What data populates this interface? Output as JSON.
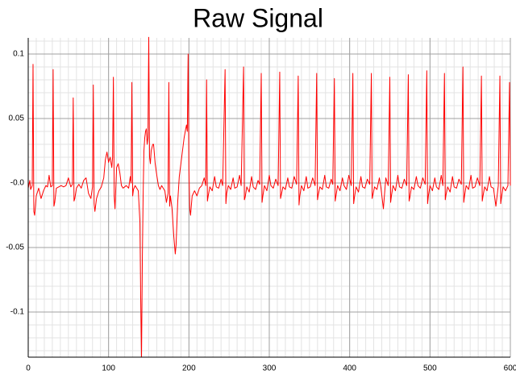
{
  "chart_data": {
    "type": "line",
    "title": "Raw Signal",
    "color": "#ff0000",
    "grid": true,
    "minor_grid": true,
    "xlim": [
      0,
      600
    ],
    "ylim": [
      -0.135,
      0.1125
    ],
    "xticks": [
      0,
      100,
      200,
      300,
      400,
      500,
      600
    ],
    "yticks": [
      -0.1,
      -0.05,
      {
        "value": 0,
        "label": "-0.0"
      },
      0.05,
      0.1
    ],
    "xminorticks": [
      0,
      10,
      20,
      30,
      40,
      50,
      60,
      70,
      80,
      90,
      100,
      110,
      120,
      130,
      140,
      150,
      160,
      170,
      180,
      190,
      200,
      210,
      220,
      230,
      240,
      250,
      260,
      270,
      280,
      290,
      300,
      310,
      320,
      330,
      340,
      350,
      360,
      370,
      380,
      390,
      400,
      410,
      420,
      430,
      440,
      450,
      460,
      470,
      480,
      490,
      500,
      510,
      520,
      530,
      540,
      550,
      560,
      570,
      580,
      590,
      600
    ],
    "yminorticks": [
      -0.13,
      -0.12,
      -0.11,
      -0.1,
      -0.09,
      -0.08,
      -0.07,
      -0.06,
      -0.05,
      -0.04,
      -0.03,
      -0.02,
      -0.01,
      0,
      0.01,
      0.02,
      0.03,
      0.04,
      0.05,
      0.06,
      0.07,
      0.08,
      0.09,
      0.1,
      0.11
    ],
    "x": [
      0,
      2,
      3,
      5,
      6,
      7,
      8,
      10,
      13,
      16,
      19,
      22,
      24,
      26,
      28,
      30,
      31,
      32,
      33,
      35,
      38,
      41,
      44,
      47,
      50,
      53,
      55,
      56,
      57,
      58,
      60,
      63,
      66,
      69,
      72,
      75,
      78,
      80,
      81,
      82,
      83,
      85,
      88,
      91,
      94,
      96,
      98,
      100,
      102,
      104,
      105,
      106,
      107,
      108,
      110,
      112,
      114,
      116,
      118,
      120,
      122,
      125,
      127,
      128,
      129,
      130,
      131,
      133,
      135,
      137,
      139,
      140,
      141,
      142,
      143,
      144,
      145,
      146,
      147,
      148,
      149,
      150,
      151,
      152,
      153,
      155,
      156,
      158,
      160,
      162,
      164,
      166,
      168,
      170,
      172,
      174,
      175,
      176,
      177,
      179,
      181,
      183,
      184,
      186,
      188,
      190,
      192,
      194,
      196,
      197,
      198,
      199,
      200,
      201,
      202,
      204,
      207,
      210,
      213,
      216,
      219,
      221,
      222,
      223,
      224,
      226,
      229,
      232,
      234,
      237,
      240,
      242,
      245,
      246,
      247,
      249,
      252,
      255,
      257,
      260,
      263,
      265,
      268,
      269,
      270,
      272,
      275,
      278,
      280,
      283,
      286,
      288,
      290,
      291,
      292,
      294,
      297,
      300,
      302,
      305,
      308,
      311,
      313,
      314,
      315,
      317,
      320,
      323,
      325,
      328,
      331,
      334,
      336,
      337,
      338,
      340,
      343,
      346,
      348,
      351,
      354,
      357,
      359,
      360,
      361,
      363,
      366,
      369,
      371,
      374,
      377,
      379,
      381,
      382,
      383,
      385,
      388,
      391,
      393,
      396,
      399,
      402,
      404,
      405,
      406,
      408,
      411,
      414,
      416,
      419,
      422,
      425,
      427,
      428,
      429,
      431,
      434,
      437,
      439,
      442,
      445,
      448,
      450,
      451,
      452,
      454,
      457,
      460,
      462,
      465,
      468,
      471,
      473,
      474,
      475,
      477,
      480,
      483,
      485,
      488,
      491,
      494,
      496,
      497,
      498,
      500,
      503,
      506,
      508,
      511,
      514,
      516,
      518,
      519,
      520,
      522,
      525,
      528,
      530,
      533,
      536,
      539,
      541,
      542,
      543,
      545,
      548,
      551,
      553,
      556,
      559,
      562,
      564,
      565,
      566,
      568,
      571,
      574,
      576,
      579,
      582,
      585,
      587,
      588,
      589,
      591,
      594,
      597,
      599,
      600
    ],
    "values": [
      -0.004,
      0.002,
      -0.005,
      -0.002,
      0.092,
      -0.022,
      -0.025,
      -0.01,
      -0.004,
      -0.012,
      -0.006,
      -0.002,
      -0.003,
      0.006,
      -0.003,
      -0.002,
      0.088,
      -0.018,
      -0.015,
      -0.004,
      -0.003,
      -0.002,
      -0.003,
      -0.002,
      0.004,
      -0.003,
      -0.001,
      0.066,
      -0.014,
      -0.012,
      -0.004,
      -0.001,
      -0.004,
      0.002,
      0.004,
      -0.008,
      -0.012,
      -0.003,
      0.076,
      -0.016,
      -0.022,
      -0.012,
      -0.006,
      -0.003,
      0.004,
      0.018,
      0.024,
      0.016,
      0.02,
      0.012,
      0.02,
      0.082,
      -0.01,
      -0.02,
      0.012,
      0.015,
      0.008,
      -0.002,
      -0.004,
      -0.003,
      -0.002,
      -0.004,
      0.005,
      0.0,
      0.078,
      -0.01,
      -0.005,
      -0.002,
      -0.004,
      -0.006,
      -0.03,
      -0.09,
      -0.135,
      -0.06,
      -0.01,
      0.025,
      0.035,
      0.04,
      0.042,
      0.03,
      0.035,
      0.113,
      0.02,
      0.015,
      0.025,
      0.03,
      0.03,
      0.015,
      0.006,
      -0.002,
      -0.005,
      -0.002,
      -0.004,
      -0.006,
      -0.015,
      -0.008,
      0.078,
      -0.018,
      -0.01,
      -0.02,
      -0.04,
      -0.055,
      -0.048,
      -0.015,
      0.005,
      0.015,
      0.025,
      0.035,
      0.042,
      0.045,
      0.04,
      0.1,
      0.01,
      -0.02,
      -0.025,
      -0.01,
      -0.006,
      -0.01,
      -0.004,
      -0.002,
      0.004,
      -0.002,
      0.08,
      -0.014,
      -0.01,
      -0.003,
      -0.006,
      0.005,
      -0.003,
      -0.004,
      0.003,
      -0.002,
      0.088,
      -0.016,
      -0.008,
      -0.002,
      -0.005,
      0.004,
      -0.004,
      -0.003,
      0.006,
      -0.002,
      0.09,
      -0.013,
      -0.011,
      -0.003,
      -0.007,
      0.005,
      -0.003,
      -0.005,
      0.002,
      -0.001,
      0.085,
      -0.015,
      -0.01,
      -0.002,
      -0.006,
      0.006,
      -0.002,
      -0.004,
      0.003,
      -0.002,
      0.086,
      -0.012,
      -0.009,
      -0.003,
      -0.005,
      0.004,
      -0.003,
      -0.004,
      0.005,
      -0.001,
      0.083,
      -0.017,
      -0.01,
      -0.002,
      -0.006,
      0.005,
      -0.004,
      -0.003,
      0.004,
      -0.002,
      0.085,
      -0.013,
      -0.009,
      -0.003,
      -0.005,
      0.006,
      -0.003,
      -0.004,
      0.003,
      -0.001,
      0.081,
      -0.014,
      -0.01,
      -0.002,
      -0.006,
      0.004,
      -0.002,
      -0.005,
      0.006,
      -0.002,
      0.085,
      -0.016,
      -0.011,
      -0.003,
      -0.007,
      0.005,
      -0.003,
      -0.004,
      0.003,
      -0.001,
      0.085,
      -0.012,
      -0.009,
      -0.003,
      -0.005,
      0.004,
      -0.004,
      -0.02,
      0.004,
      -0.002,
      0.082,
      -0.015,
      -0.01,
      -0.002,
      -0.006,
      0.006,
      -0.003,
      -0.004,
      0.003,
      -0.002,
      0.084,
      -0.014,
      -0.011,
      -0.003,
      -0.005,
      0.005,
      -0.002,
      -0.004,
      0.004,
      -0.001,
      0.087,
      -0.016,
      -0.01,
      -0.002,
      -0.006,
      0.004,
      -0.003,
      -0.005,
      0.006,
      -0.002,
      0.085,
      -0.013,
      -0.009,
      -0.003,
      -0.007,
      0.005,
      -0.003,
      -0.004,
      0.003,
      -0.001,
      0.09,
      -0.015,
      -0.01,
      -0.002,
      -0.005,
      0.006,
      -0.004,
      -0.003,
      0.004,
      -0.002,
      0.083,
      -0.014,
      -0.01,
      -0.003,
      -0.006,
      0.005,
      -0.003,
      -0.004,
      -0.018,
      -0.002,
      0.083,
      -0.016,
      -0.011,
      -0.003,
      -0.006,
      -0.002,
      0.078,
      -0.002
    ]
  }
}
